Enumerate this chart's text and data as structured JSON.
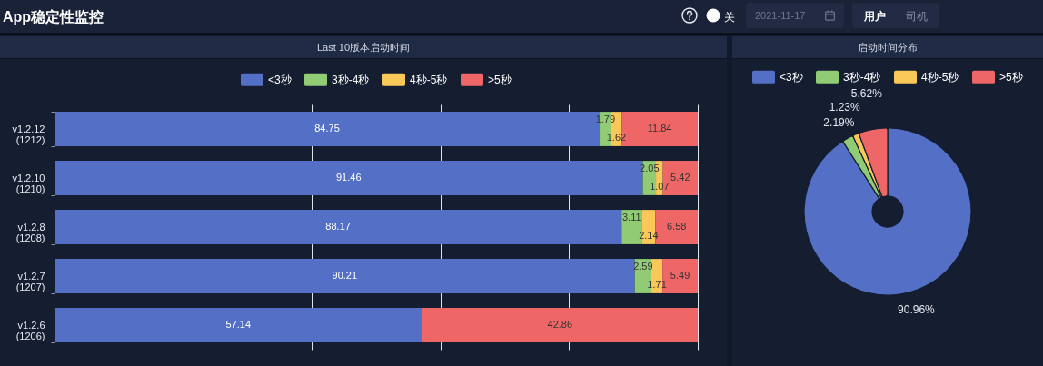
{
  "chart_data": [
    {
      "type": "other",
      "title": "App稳定性监控",
      "annotations": [
        "关",
        "2021-11-17",
        "用户",
        "司机"
      ]
    },
    {
      "type": "bar",
      "title": "Last 10版本启动时间",
      "orientation": "horizontal",
      "stacked": true,
      "categories": [
        "v1.2.12 (1212)",
        "v1.2.10 (1210)",
        "v1.2.8 (1208)",
        "v1.2.7 (1207)",
        "v1.2.6 (1206)"
      ],
      "series": [
        {
          "name": "<3秒",
          "color": "#5470c6",
          "values": [
            84.75,
            91.46,
            88.17,
            90.21,
            57.14
          ]
        },
        {
          "name": "3秒-4秒",
          "color": "#91cc75",
          "values": [
            1.79,
            2.05,
            3.11,
            2.59,
            null
          ]
        },
        {
          "name": "4秒-5秒",
          "color": "#fac858",
          "values": [
            1.62,
            1.07,
            2.14,
            1.71,
            null
          ]
        },
        {
          "name": ">5秒",
          "color": "#ee6666",
          "values": [
            11.84,
            5.42,
            6.58,
            5.49,
            42.86
          ]
        }
      ],
      "xlim": [
        0,
        100
      ],
      "xticks": [
        {
          "value": 0,
          "label": null
        },
        {
          "value": 20,
          "label": null
        },
        {
          "value": 40,
          "label": null
        },
        {
          "value": 60,
          "label": null
        },
        {
          "value": 80,
          "label": null
        },
        {
          "value": 100,
          "label": null
        }
      ],
      "grid": "x",
      "legend": "top",
      "tick_labels": "y",
      "data_labels": true
    },
    {
      "type": "donut",
      "title": "启动时间分布",
      "categories": [
        "<3秒",
        "3秒-4秒",
        "4秒-5秒",
        ">5秒"
      ],
      "values": [
        90.96,
        2.19,
        1.23,
        5.62
      ],
      "colors": [
        "#5470c6",
        "#91cc75",
        "#fac858",
        "#ee6666"
      ],
      "value_labels": [
        "90.96%",
        "2.19%",
        "1.23%",
        "5.62%"
      ],
      "legend": "top"
    }
  ]
}
